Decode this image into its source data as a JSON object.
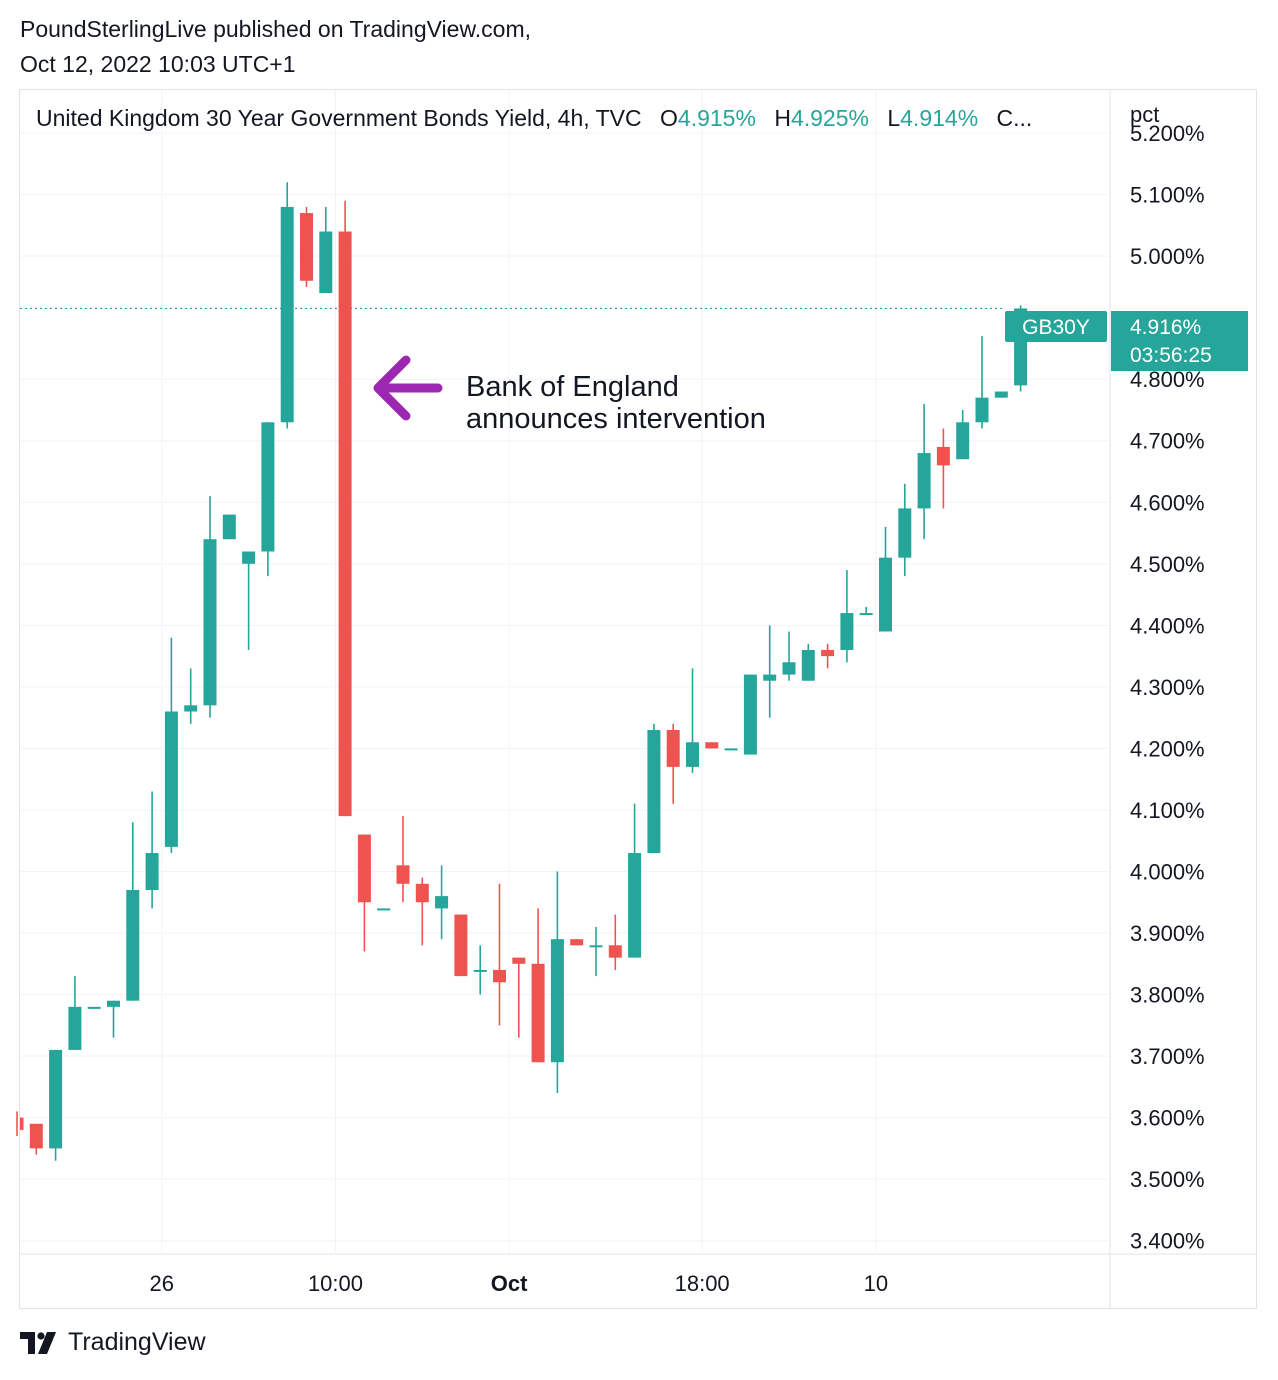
{
  "publisher": {
    "line1": "PoundSterlingLive published on TradingView.com,",
    "line2": "Oct 12, 2022 10:03 UTC+1"
  },
  "legend": {
    "title": "United Kingdom 30 Year Government Bonds Yield, 4h, TVC",
    "open_label": "O",
    "open_value": "4.915%",
    "high_label": "H",
    "high_value": "4.925%",
    "low_label": "L",
    "low_value": "4.914%",
    "close_truncated": "C..."
  },
  "price_axis": {
    "unit_label": "pct"
  },
  "last_price": {
    "symbol": "GB30Y",
    "value": "4.916%",
    "countdown": "03:56:25",
    "color": "#26a69a"
  },
  "annotation": {
    "line1": "Bank of England",
    "line2": "announces intervention",
    "arrow_color": "#9c27b0"
  },
  "footer": {
    "brand": "TradingView"
  },
  "colors": {
    "up": "#26a69a",
    "down": "#ef5350",
    "grid": "#f0f3fa",
    "axis_text": "#131722"
  },
  "chart_data": {
    "type": "candlestick",
    "title": "United Kingdom 30 Year Government Bonds Yield, 4h, TVC",
    "ylabel": "pct",
    "ylim": [
      3.38,
      5.27
    ],
    "y_ticks": [
      "5.200%",
      "5.100%",
      "5.000%",
      "4.800%",
      "4.700%",
      "4.600%",
      "4.500%",
      "4.400%",
      "4.300%",
      "4.200%",
      "4.100%",
      "4.000%",
      "3.900%",
      "3.800%",
      "3.700%",
      "3.600%",
      "3.500%",
      "3.400%"
    ],
    "x_ticks": [
      {
        "label": "26",
        "index": 7.5,
        "bold": false
      },
      {
        "label": "10:00",
        "index": 16.5,
        "bold": false
      },
      {
        "label": "Oct",
        "index": 25.5,
        "bold": true
      },
      {
        "label": "18:00",
        "index": 35.5,
        "bold": false
      },
      {
        "label": "10",
        "index": 44.5,
        "bold": false
      }
    ],
    "candles": [
      {
        "o": 3.6,
        "h": 3.61,
        "l": 3.57,
        "c": 3.58
      },
      {
        "o": 3.59,
        "h": 3.59,
        "l": 3.54,
        "c": 3.55
      },
      {
        "o": 3.55,
        "h": 3.71,
        "l": 3.53,
        "c": 3.71
      },
      {
        "o": 3.71,
        "h": 3.83,
        "l": 3.71,
        "c": 3.78
      },
      {
        "o": 3.78,
        "h": 3.78,
        "l": 3.78,
        "c": 3.78
      },
      {
        "o": 3.78,
        "h": 3.79,
        "l": 3.73,
        "c": 3.79
      },
      {
        "o": 3.79,
        "h": 4.08,
        "l": 3.79,
        "c": 3.97
      },
      {
        "o": 3.97,
        "h": 4.13,
        "l": 3.94,
        "c": 4.03
      },
      {
        "o": 4.04,
        "h": 4.38,
        "l": 4.03,
        "c": 4.26
      },
      {
        "o": 4.26,
        "h": 4.33,
        "l": 4.24,
        "c": 4.27
      },
      {
        "o": 4.27,
        "h": 4.61,
        "l": 4.25,
        "c": 4.54
      },
      {
        "o": 4.54,
        "h": 4.58,
        "l": 4.54,
        "c": 4.58
      },
      {
        "o": 4.5,
        "h": 4.52,
        "l": 4.36,
        "c": 4.52
      },
      {
        "o": 4.52,
        "h": 4.73,
        "l": 4.48,
        "c": 4.73
      },
      {
        "o": 4.73,
        "h": 5.12,
        "l": 4.72,
        "c": 5.08
      },
      {
        "o": 5.07,
        "h": 5.08,
        "l": 4.95,
        "c": 4.96
      },
      {
        "o": 4.94,
        "h": 5.08,
        "l": 4.94,
        "c": 5.04
      },
      {
        "o": 5.04,
        "h": 5.09,
        "l": 4.09,
        "c": 4.09
      },
      {
        "o": 4.06,
        "h": 4.06,
        "l": 3.87,
        "c": 3.95
      },
      {
        "o": 3.94,
        "h": 3.94,
        "l": 3.94,
        "c": 3.94
      },
      {
        "o": 4.01,
        "h": 4.09,
        "l": 3.95,
        "c": 3.98
      },
      {
        "o": 3.98,
        "h": 3.99,
        "l": 3.88,
        "c": 3.95
      },
      {
        "o": 3.94,
        "h": 4.01,
        "l": 3.89,
        "c": 3.96
      },
      {
        "o": 3.93,
        "h": 3.93,
        "l": 3.83,
        "c": 3.83
      },
      {
        "o": 3.84,
        "h": 3.88,
        "l": 3.8,
        "c": 3.84
      },
      {
        "o": 3.84,
        "h": 3.98,
        "l": 3.75,
        "c": 3.82
      },
      {
        "o": 3.86,
        "h": 3.86,
        "l": 3.73,
        "c": 3.85
      },
      {
        "o": 3.85,
        "h": 3.94,
        "l": 3.69,
        "c": 3.69
      },
      {
        "o": 3.69,
        "h": 4.0,
        "l": 3.64,
        "c": 3.89
      },
      {
        "o": 3.89,
        "h": 3.89,
        "l": 3.88,
        "c": 3.88
      },
      {
        "o": 3.88,
        "h": 3.91,
        "l": 3.83,
        "c": 3.88
      },
      {
        "o": 3.88,
        "h": 3.93,
        "l": 3.84,
        "c": 3.86
      },
      {
        "o": 3.86,
        "h": 4.11,
        "l": 3.86,
        "c": 4.03
      },
      {
        "o": 4.03,
        "h": 4.24,
        "l": 4.03,
        "c": 4.23
      },
      {
        "o": 4.23,
        "h": 4.24,
        "l": 4.11,
        "c": 4.17
      },
      {
        "o": 4.17,
        "h": 4.33,
        "l": 4.16,
        "c": 4.21
      },
      {
        "o": 4.21,
        "h": 4.21,
        "l": 4.2,
        "c": 4.2
      },
      {
        "o": 4.2,
        "h": 4.2,
        "l": 4.2,
        "c": 4.2
      },
      {
        "o": 4.19,
        "h": 4.32,
        "l": 4.19,
        "c": 4.32
      },
      {
        "o": 4.31,
        "h": 4.4,
        "l": 4.25,
        "c": 4.32
      },
      {
        "o": 4.32,
        "h": 4.39,
        "l": 4.31,
        "c": 4.34
      },
      {
        "o": 4.31,
        "h": 4.37,
        "l": 4.31,
        "c": 4.36
      },
      {
        "o": 4.36,
        "h": 4.37,
        "l": 4.33,
        "c": 4.35
      },
      {
        "o": 4.36,
        "h": 4.49,
        "l": 4.34,
        "c": 4.42
      },
      {
        "o": 4.42,
        "h": 4.43,
        "l": 4.42,
        "c": 4.42
      },
      {
        "o": 4.39,
        "h": 4.56,
        "l": 4.39,
        "c": 4.51
      },
      {
        "o": 4.51,
        "h": 4.63,
        "l": 4.48,
        "c": 4.59
      },
      {
        "o": 4.59,
        "h": 4.76,
        "l": 4.54,
        "c": 4.68
      },
      {
        "o": 4.69,
        "h": 4.72,
        "l": 4.59,
        "c": 4.66
      },
      {
        "o": 4.67,
        "h": 4.75,
        "l": 4.67,
        "c": 4.73
      },
      {
        "o": 4.73,
        "h": 4.87,
        "l": 4.72,
        "c": 4.77
      },
      {
        "o": 4.77,
        "h": 4.78,
        "l": 4.77,
        "c": 4.78
      },
      {
        "o": 4.79,
        "h": 4.92,
        "l": 4.78,
        "c": 4.915
      }
    ]
  }
}
